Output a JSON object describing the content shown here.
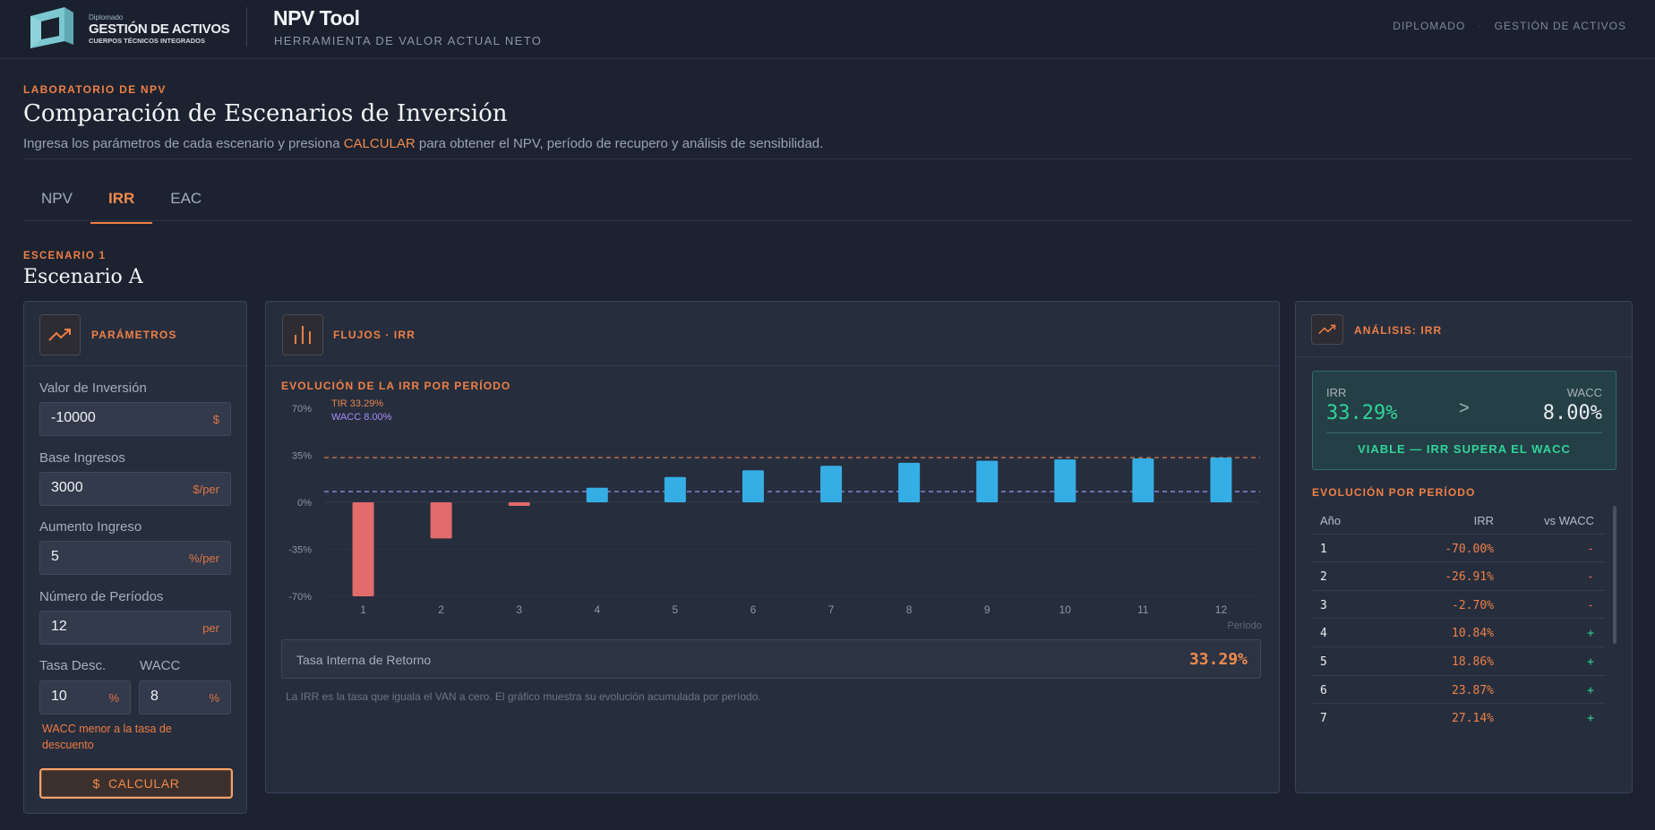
{
  "brand": {
    "small": "Diplomado",
    "big": "GESTIÓN DE ACTIVOS",
    "sub": "CUERPOS TÉCNICOS INTEGRADOS"
  },
  "app": {
    "title": "NPV Tool",
    "subtitle": "HERRAMIENTA DE VALOR ACTUAL NETO"
  },
  "top_nav": [
    "DIPLOMADO",
    "·",
    "GESTIÓN DE ACTIVOS"
  ],
  "intro": {
    "eyebrow": "LABORATORIO DE NPV",
    "title": "Comparación de Escenarios de Inversión",
    "desc_before": "Ingresa los parámetros de cada escenario y presiona ",
    "desc_highlight": "CALCULAR",
    "desc_after": " para obtener el NPV, período de recupero y análisis de sensibilidad."
  },
  "tabs": [
    {
      "label": "NPV",
      "active": false
    },
    {
      "label": "IRR",
      "active": true
    },
    {
      "label": "EAC",
      "active": false
    }
  ],
  "scenario": {
    "eyebrow": "ESCENARIO 1",
    "title": "Escenario A"
  },
  "params": {
    "header": "PARÁMETROS",
    "investment": {
      "label": "Valor de Inversión",
      "value": "-10000",
      "unit": "$"
    },
    "base_income": {
      "label": "Base Ingresos",
      "value": "3000",
      "unit": "$/per"
    },
    "income_increase": {
      "label": "Aumento Ingreso",
      "value": "5",
      "unit": "%/per"
    },
    "periods": {
      "label": "Número de Períodos",
      "value": "12",
      "unit": "per"
    },
    "discount_rate": {
      "label": "Tasa Desc.",
      "value": "10",
      "unit": "%"
    },
    "wacc": {
      "label": "WACC",
      "value": "8",
      "unit": "%"
    },
    "warning": "WACC menor a la tasa de descuento",
    "calc_icon": "$",
    "calc_label": "CALCULAR"
  },
  "chart_panel": {
    "header": "FLUJOS · IRR",
    "subtitle": "EVOLUCIÓN DE LA IRR POR PERÍODO",
    "result_label": "Tasa Interna de Retorno",
    "result_value": "33.29%",
    "note": "La IRR es la tasa que iguala el VAN a cero. El gráfico muestra su evolución acumulada por período."
  },
  "chart_data": {
    "type": "bar",
    "title": "",
    "xlabel": "Período",
    "ylabel": "",
    "categories": [
      "1",
      "2",
      "3",
      "4",
      "5",
      "6",
      "7",
      "8",
      "9",
      "10",
      "11",
      "12"
    ],
    "values": [
      -70.0,
      -26.91,
      -2.7,
      10.84,
      18.86,
      23.87,
      27.14,
      29.4,
      30.9,
      31.9,
      32.7,
      33.29
    ],
    "ylim": [
      -70,
      70
    ],
    "yticks": [
      70,
      35,
      0,
      -35,
      -70
    ],
    "ytick_labels": [
      "70%",
      "35%",
      "0%",
      "-35%",
      "-70%"
    ],
    "reference_lines": [
      {
        "label": "TIR 33.29%",
        "value": 33.29,
        "color": "#e8844e"
      },
      {
        "label": "WACC 8.00%",
        "value": 8.0,
        "color": "#a58ef5"
      }
    ],
    "colors": {
      "positive": "#35aee6",
      "negative": "#e26b6b"
    },
    "grid": false,
    "legend": "top-left"
  },
  "analysis": {
    "header": "ANÁLISIS: IRR",
    "irr_label": "IRR",
    "irr_value": "33.29%",
    "wacc_label": "WACC",
    "wacc_value": "8.00%",
    "arrow": ">",
    "verdict": "VIABLE — IRR SUPERA EL WACC",
    "evo_label": "EVOLUCIÓN POR PERÍODO",
    "table_headers": [
      "Año",
      "IRR",
      "vs WACC"
    ],
    "rows": [
      {
        "year": "1",
        "irr": "-70.00%",
        "vs": "-"
      },
      {
        "year": "2",
        "irr": "-26.91%",
        "vs": "-"
      },
      {
        "year": "3",
        "irr": "-2.70%",
        "vs": "-"
      },
      {
        "year": "4",
        "irr": "10.84%",
        "vs": "+"
      },
      {
        "year": "5",
        "irr": "18.86%",
        "vs": "+"
      },
      {
        "year": "6",
        "irr": "23.87%",
        "vs": "+"
      },
      {
        "year": "7",
        "irr": "27.14%",
        "vs": "+"
      }
    ]
  },
  "colors": {
    "accent": "#f07f45",
    "positive": "#31d49a",
    "negative": "#e26b6b",
    "bar_positive": "#35aee6",
    "background": "#1c2230"
  }
}
